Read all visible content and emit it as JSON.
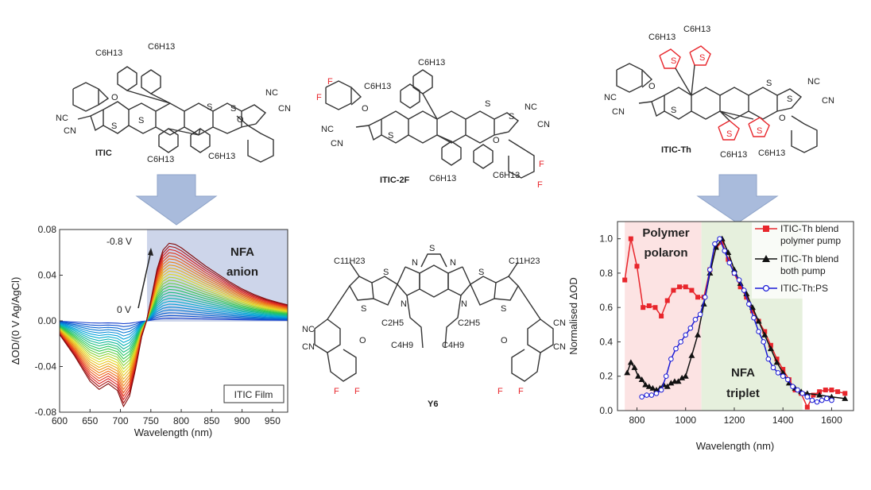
{
  "molecules": {
    "itic": {
      "label": "ITIC"
    },
    "itic2f": {
      "label": "ITIC-2F"
    },
    "iticth": {
      "label": "ITIC-Th"
    },
    "y6": {
      "label": "Y6"
    }
  },
  "atoms": {
    "c6h13": "C6H13",
    "c11h23": "C11H23",
    "c2h5": "C2H5",
    "c4h9": "C4H9",
    "nc": "NC",
    "cn": "CN",
    "o": "O",
    "s": "S",
    "n": "N",
    "f": "F"
  },
  "colors": {
    "shaded_blue": "#cdd5ea",
    "shaded_red": "#fce3e3",
    "shaded_green": "#e6f0dd",
    "arrow_fill": "#a9bbdc",
    "red_series": "#e8262c",
    "blue_series": "#1a1ad6"
  },
  "chart_data": [
    {
      "type": "line",
      "title": "",
      "xlabel": "Wavelength (nm)",
      "ylabel": "ΔOD/(0 V Ag/AgCl)",
      "xlim": [
        600,
        975
      ],
      "ylim": [
        -0.08,
        0.08
      ],
      "xticks": [
        600,
        650,
        700,
        750,
        800,
        850,
        900,
        950
      ],
      "yticks": [
        -0.08,
        -0.04,
        0.0,
        0.04,
        0.08
      ],
      "ytick_labels": [
        "-0.08",
        "-0.04",
        "0.00",
        "0.04",
        "0.08"
      ],
      "series_description": "potential-dependent spectra, colour rainbow from blue (0 V) to dark red (-0.8 V)",
      "series_count": 26,
      "potential_labels": {
        "start": "0 V",
        "end": "-0.8 V"
      },
      "shaded_region": {
        "x": [
          743,
          975
        ],
        "label_line1": "NFA",
        "label_line2": "anion"
      },
      "legend": "ITIC Film",
      "envelope": {
        "x": [
          600,
          625,
          650,
          665,
          680,
          695,
          705,
          715,
          725,
          735,
          743,
          750,
          760,
          770,
          780,
          790,
          800,
          820,
          840,
          860,
          880,
          900,
          920,
          940,
          960,
          975
        ],
        "y": [
          -0.012,
          -0.031,
          -0.053,
          -0.06,
          -0.055,
          -0.061,
          -0.075,
          -0.066,
          -0.042,
          -0.014,
          0.0,
          0.018,
          0.045,
          0.062,
          0.068,
          0.067,
          0.064,
          0.056,
          0.048,
          0.041,
          0.034,
          0.028,
          0.023,
          0.019,
          0.016,
          0.014
        ]
      }
    },
    {
      "type": "line",
      "title": "",
      "xlabel": "Wavelength (nm)",
      "ylabel": "Normalised ΔOD",
      "xlim": [
        720,
        1690
      ],
      "ylim": [
        0,
        1.1
      ],
      "xticks": [
        800,
        1000,
        1200,
        1400,
        1600
      ],
      "yticks": [
        0.0,
        0.2,
        0.4,
        0.6,
        0.8,
        1.0
      ],
      "ytick_labels": [
        "0.0",
        "0.2",
        "0.4",
        "0.6",
        "0.8",
        "1.0"
      ],
      "regions": [
        {
          "x": [
            750,
            1065
          ],
          "label_line1": "Polymer",
          "label_line2": "polaron"
        },
        {
          "x": [
            1065,
            1480
          ],
          "label_line1": "NFA",
          "label_line2": "triplet"
        }
      ],
      "legend_position": "top-right",
      "series": [
        {
          "name": "ITIC-Th blend polymer pump",
          "legend_line1": "ITIC-Th blend",
          "legend_line2": "polymer pump",
          "color": "#e8262c",
          "marker": "square",
          "x": [
            750,
            775,
            800,
            825,
            850,
            875,
            900,
            925,
            950,
            975,
            1000,
            1025,
            1050,
            1075,
            1100,
            1125,
            1150,
            1175,
            1200,
            1225,
            1250,
            1275,
            1300,
            1325,
            1350,
            1375,
            1400,
            1425,
            1450,
            1475,
            1500,
            1525,
            1550,
            1575,
            1600,
            1625,
            1655
          ],
          "y": [
            0.76,
            1.0,
            0.84,
            0.6,
            0.61,
            0.6,
            0.55,
            0.64,
            0.7,
            0.72,
            0.72,
            0.7,
            0.66,
            0.66,
            0.82,
            0.95,
            0.98,
            0.88,
            0.8,
            0.72,
            0.66,
            0.58,
            0.52,
            0.46,
            0.38,
            0.3,
            0.24,
            0.18,
            0.12,
            0.1,
            0.02,
            0.09,
            0.11,
            0.12,
            0.12,
            0.11,
            0.1
          ]
        },
        {
          "name": "ITIC-Th blend both pump",
          "legend_line1": "ITIC-Th blend",
          "legend_line2": "both pump",
          "color": "#111111",
          "marker": "triangle",
          "x": [
            760,
            775,
            790,
            805,
            820,
            835,
            850,
            865,
            880,
            895,
            910,
            925,
            940,
            955,
            970,
            985,
            1000,
            1025,
            1050,
            1075,
            1100,
            1125,
            1150,
            1175,
            1200,
            1225,
            1250,
            1275,
            1300,
            1325,
            1350,
            1375,
            1400,
            1425,
            1450,
            1475,
            1500,
            1550,
            1600,
            1655
          ],
          "y": [
            0.22,
            0.28,
            0.25,
            0.2,
            0.18,
            0.15,
            0.14,
            0.13,
            0.12,
            0.13,
            0.15,
            0.14,
            0.16,
            0.17,
            0.17,
            0.19,
            0.2,
            0.32,
            0.44,
            0.62,
            0.8,
            0.95,
            1.0,
            0.92,
            0.82,
            0.74,
            0.68,
            0.6,
            0.52,
            0.44,
            0.36,
            0.28,
            0.22,
            0.16,
            0.13,
            0.11,
            0.1,
            0.09,
            0.08,
            0.07
          ]
        },
        {
          "name": "ITIC-Th:PS",
          "legend_line1": "ITIC-Th:PS",
          "legend_line2": "",
          "color": "#1a1ad6",
          "marker": "circle",
          "x": [
            820,
            840,
            860,
            880,
            900,
            920,
            940,
            960,
            980,
            1000,
            1020,
            1040,
            1060,
            1080,
            1100,
            1120,
            1140,
            1160,
            1180,
            1200,
            1220,
            1240,
            1260,
            1280,
            1300,
            1320,
            1340,
            1360,
            1380,
            1400,
            1420,
            1440,
            1460,
            1480,
            1500,
            1520,
            1540,
            1560,
            1580,
            1600
          ],
          "y": [
            0.08,
            0.09,
            0.09,
            0.1,
            0.12,
            0.2,
            0.3,
            0.36,
            0.4,
            0.44,
            0.48,
            0.53,
            0.56,
            0.66,
            0.82,
            0.97,
            1.0,
            0.93,
            0.86,
            0.8,
            0.76,
            0.7,
            0.62,
            0.54,
            0.46,
            0.4,
            0.3,
            0.25,
            0.22,
            0.2,
            0.18,
            0.14,
            0.12,
            0.1,
            0.08,
            0.06,
            0.05,
            0.06,
            0.07,
            0.06
          ]
        }
      ]
    }
  ]
}
